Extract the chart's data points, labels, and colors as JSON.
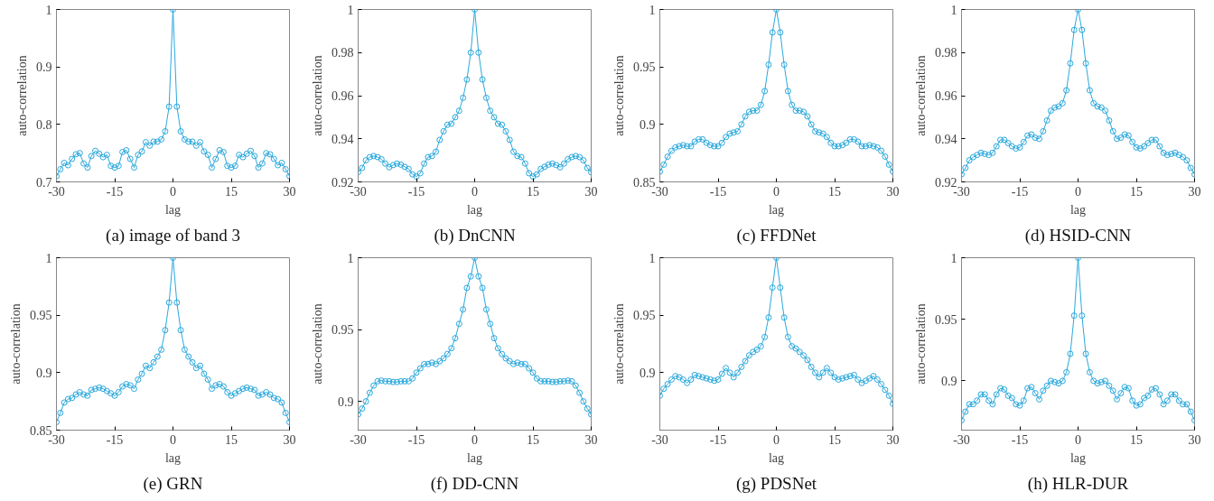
{
  "chart_data": [
    {
      "type": "line",
      "title": "(a) image of band 3",
      "xlabel": "lag",
      "ylabel": "auto-correlation",
      "marker": "circle",
      "grid": false,
      "color": "#2aa8dc",
      "xlim": [
        -30,
        30
      ],
      "ylim": [
        0.7,
        1
      ],
      "xticks": [
        -30,
        -15,
        0,
        15,
        30
      ],
      "yticks": [
        0.7,
        0.8,
        0.9,
        1
      ],
      "x": [
        -30,
        -29,
        -28,
        -27,
        -26,
        -25,
        -24,
        -23,
        -22,
        -21,
        -20,
        -19,
        -18,
        -17,
        -16,
        -15,
        -14,
        -13,
        -12,
        -11,
        -10,
        -9,
        -8,
        -7,
        -6,
        -5,
        -4,
        -3,
        -2,
        -1,
        0,
        1,
        2,
        3,
        4,
        5,
        6,
        7,
        8,
        9,
        10,
        11,
        12,
        13,
        14,
        15,
        16,
        17,
        18,
        19,
        20,
        21,
        22,
        23,
        24,
        25,
        26,
        27,
        28,
        29,
        30
      ],
      "values": [
        0.71,
        0.722,
        0.733,
        0.729,
        0.74,
        0.748,
        0.75,
        0.732,
        0.725,
        0.745,
        0.754,
        0.749,
        0.743,
        0.747,
        0.728,
        0.725,
        0.728,
        0.752,
        0.755,
        0.74,
        0.725,
        0.747,
        0.753,
        0.769,
        0.763,
        0.77,
        0.77,
        0.774,
        0.788,
        0.831,
        1,
        0.831,
        0.788,
        0.774,
        0.77,
        0.77,
        0.763,
        0.769,
        0.753,
        0.747,
        0.725,
        0.74,
        0.755,
        0.752,
        0.728,
        0.725,
        0.728,
        0.747,
        0.743,
        0.749,
        0.754,
        0.745,
        0.725,
        0.732,
        0.75,
        0.748,
        0.74,
        0.729,
        0.733,
        0.722,
        0.71
      ]
    },
    {
      "type": "line",
      "title": "(b) DnCNN",
      "xlabel": "lag",
      "ylabel": "auto-correlation",
      "marker": "circle",
      "grid": false,
      "color": "#2aa8dc",
      "xlim": [
        -30,
        30
      ],
      "ylim": [
        0.92,
        1
      ],
      "xticks": [
        -30,
        -15,
        0,
        15,
        30
      ],
      "yticks": [
        0.92,
        0.94,
        0.96,
        0.98,
        1
      ],
      "x": [
        -30,
        -29,
        -28,
        -27,
        -26,
        -25,
        -24,
        -23,
        -22,
        -21,
        -20,
        -19,
        -18,
        -17,
        -16,
        -15,
        -14,
        -13,
        -12,
        -11,
        -10,
        -9,
        -8,
        -7,
        -6,
        -5,
        -4,
        -3,
        -2,
        -1,
        0,
        1,
        2,
        3,
        4,
        5,
        6,
        7,
        8,
        9,
        10,
        11,
        12,
        13,
        14,
        15,
        16,
        17,
        18,
        19,
        20,
        21,
        22,
        23,
        24,
        25,
        26,
        27,
        28,
        29,
        30
      ],
      "values": [
        0.9245,
        0.9265,
        0.93,
        0.9315,
        0.932,
        0.9315,
        0.9305,
        0.9285,
        0.9268,
        0.9278,
        0.9285,
        0.928,
        0.927,
        0.926,
        0.9235,
        0.9225,
        0.924,
        0.9285,
        0.9315,
        0.932,
        0.934,
        0.9395,
        0.9435,
        0.9465,
        0.947,
        0.95,
        0.953,
        0.959,
        0.9675,
        0.98,
        1,
        0.98,
        0.9675,
        0.959,
        0.953,
        0.95,
        0.947,
        0.9465,
        0.9435,
        0.9395,
        0.934,
        0.932,
        0.9315,
        0.9285,
        0.924,
        0.9225,
        0.9235,
        0.926,
        0.927,
        0.928,
        0.9285,
        0.9278,
        0.9268,
        0.9285,
        0.9305,
        0.9315,
        0.932,
        0.9315,
        0.93,
        0.9265,
        0.9245
      ]
    },
    {
      "type": "line",
      "title": "(c) FFDNet",
      "xlabel": "lag",
      "ylabel": "auto-correlation",
      "marker": "circle",
      "grid": false,
      "color": "#2aa8dc",
      "xlim": [
        -30,
        30
      ],
      "ylim": [
        0.85,
        1
      ],
      "xticks": [
        -30,
        -15,
        0,
        15,
        30
      ],
      "yticks": [
        0.85,
        0.9,
        0.95,
        1
      ],
      "x": [
        -30,
        -29,
        -28,
        -27,
        -26,
        -25,
        -24,
        -23,
        -22,
        -21,
        -20,
        -19,
        -18,
        -17,
        -16,
        -15,
        -14,
        -13,
        -12,
        -11,
        -10,
        -9,
        -8,
        -7,
        -6,
        -5,
        -4,
        -3,
        -2,
        -1,
        0,
        1,
        2,
        3,
        4,
        5,
        6,
        7,
        8,
        9,
        10,
        11,
        12,
        13,
        14,
        15,
        16,
        17,
        18,
        19,
        20,
        21,
        22,
        23,
        24,
        25,
        26,
        27,
        28,
        29,
        30
      ],
      "values": [
        0.859,
        0.865,
        0.872,
        0.877,
        0.88,
        0.881,
        0.882,
        0.881,
        0.881,
        0.885,
        0.887,
        0.887,
        0.884,
        0.882,
        0.881,
        0.881,
        0.884,
        0.889,
        0.892,
        0.893,
        0.894,
        0.9,
        0.907,
        0.911,
        0.912,
        0.912,
        0.917,
        0.929,
        0.952,
        0.98,
        1,
        0.98,
        0.952,
        0.929,
        0.917,
        0.912,
        0.912,
        0.911,
        0.907,
        0.9,
        0.894,
        0.893,
        0.892,
        0.889,
        0.884,
        0.881,
        0.881,
        0.882,
        0.884,
        0.887,
        0.887,
        0.885,
        0.881,
        0.881,
        0.882,
        0.881,
        0.88,
        0.877,
        0.872,
        0.865,
        0.859
      ]
    },
    {
      "type": "line",
      "title": "(d) HSID-CNN",
      "xlabel": "lag",
      "ylabel": "auto-correlation",
      "marker": "circle",
      "grid": false,
      "color": "#2aa8dc",
      "xlim": [
        -30,
        30
      ],
      "ylim": [
        0.92,
        1
      ],
      "xticks": [
        -30,
        -15,
        0,
        15,
        30
      ],
      "yticks": [
        0.92,
        0.94,
        0.96,
        0.98,
        1
      ],
      "x": [
        -30,
        -29,
        -28,
        -27,
        -26,
        -25,
        -24,
        -23,
        -22,
        -21,
        -20,
        -19,
        -18,
        -17,
        -16,
        -15,
        -14,
        -13,
        -12,
        -11,
        -10,
        -9,
        -8,
        -7,
        -6,
        -5,
        -4,
        -3,
        -2,
        -1,
        0,
        1,
        2,
        3,
        4,
        5,
        6,
        7,
        8,
        9,
        10,
        11,
        12,
        13,
        14,
        15,
        16,
        17,
        18,
        19,
        20,
        21,
        22,
        23,
        24,
        25,
        26,
        27,
        28,
        29,
        30
      ],
      "values": [
        0.9235,
        0.9265,
        0.93,
        0.9315,
        0.9325,
        0.9335,
        0.933,
        0.9325,
        0.9335,
        0.9365,
        0.9395,
        0.9395,
        0.938,
        0.9365,
        0.9355,
        0.936,
        0.9385,
        0.9415,
        0.942,
        0.9405,
        0.94,
        0.9435,
        0.9485,
        0.953,
        0.9545,
        0.955,
        0.9565,
        0.9625,
        0.975,
        0.9905,
        1,
        0.9905,
        0.975,
        0.9625,
        0.9565,
        0.955,
        0.9545,
        0.953,
        0.9485,
        0.9435,
        0.94,
        0.9405,
        0.942,
        0.9415,
        0.9385,
        0.936,
        0.9355,
        0.9365,
        0.938,
        0.9395,
        0.9395,
        0.9365,
        0.9335,
        0.9325,
        0.933,
        0.9335,
        0.9325,
        0.9315,
        0.93,
        0.9265,
        0.9235
      ]
    },
    {
      "type": "line",
      "title": "(e) GRN",
      "xlabel": "lag",
      "ylabel": "auto-correlation",
      "marker": "circle",
      "grid": false,
      "color": "#2aa8dc",
      "xlim": [
        -30,
        30
      ],
      "ylim": [
        0.85,
        1
      ],
      "xticks": [
        -30,
        -15,
        0,
        15,
        30
      ],
      "yticks": [
        0.85,
        0.9,
        0.95,
        1
      ],
      "x": [
        -30,
        -29,
        -28,
        -27,
        -26,
        -25,
        -24,
        -23,
        -22,
        -21,
        -20,
        -19,
        -18,
        -17,
        -16,
        -15,
        -14,
        -13,
        -12,
        -11,
        -10,
        -9,
        -8,
        -7,
        -6,
        -5,
        -4,
        -3,
        -2,
        -1,
        0,
        1,
        2,
        3,
        4,
        5,
        6,
        7,
        8,
        9,
        10,
        11,
        12,
        13,
        14,
        15,
        16,
        17,
        18,
        19,
        20,
        21,
        22,
        23,
        24,
        25,
        26,
        27,
        28,
        29,
        30
      ],
      "values": [
        0.857,
        0.865,
        0.874,
        0.877,
        0.878,
        0.881,
        0.883,
        0.881,
        0.88,
        0.885,
        0.886,
        0.887,
        0.886,
        0.884,
        0.882,
        0.88,
        0.883,
        0.888,
        0.89,
        0.889,
        0.886,
        0.894,
        0.899,
        0.906,
        0.904,
        0.909,
        0.914,
        0.92,
        0.937,
        0.961,
        1,
        0.961,
        0.937,
        0.92,
        0.914,
        0.909,
        0.904,
        0.906,
        0.899,
        0.894,
        0.886,
        0.889,
        0.89,
        0.888,
        0.883,
        0.88,
        0.882,
        0.884,
        0.886,
        0.887,
        0.886,
        0.885,
        0.88,
        0.881,
        0.883,
        0.881,
        0.878,
        0.877,
        0.874,
        0.865,
        0.857
      ]
    },
    {
      "type": "line",
      "title": "(f) DD-CNN",
      "xlabel": "lag",
      "ylabel": "auto-correlation",
      "marker": "circle",
      "grid": false,
      "color": "#2aa8dc",
      "xlim": [
        -30,
        30
      ],
      "ylim": [
        0.88,
        1
      ],
      "xticks": [
        -30,
        -15,
        0,
        15,
        30
      ],
      "yticks": [
        0.9,
        0.95,
        1
      ],
      "x": [
        -30,
        -29,
        -28,
        -27,
        -26,
        -25,
        -24,
        -23,
        -22,
        -21,
        -20,
        -19,
        -18,
        -17,
        -16,
        -15,
        -14,
        -13,
        -12,
        -11,
        -10,
        -9,
        -8,
        -7,
        -6,
        -5,
        -4,
        -3,
        -2,
        -1,
        0,
        1,
        2,
        3,
        4,
        5,
        6,
        7,
        8,
        9,
        10,
        11,
        12,
        13,
        14,
        15,
        16,
        17,
        18,
        19,
        20,
        21,
        22,
        23,
        24,
        25,
        26,
        27,
        28,
        29,
        30
      ],
      "values": [
        0.891,
        0.895,
        0.9,
        0.906,
        0.911,
        0.914,
        0.9145,
        0.914,
        0.914,
        0.9135,
        0.9135,
        0.914,
        0.914,
        0.914,
        0.916,
        0.92,
        0.923,
        0.926,
        0.926,
        0.927,
        0.926,
        0.928,
        0.93,
        0.933,
        0.937,
        0.944,
        0.954,
        0.964,
        0.979,
        0.987,
        1,
        0.987,
        0.979,
        0.964,
        0.954,
        0.944,
        0.937,
        0.933,
        0.93,
        0.928,
        0.926,
        0.927,
        0.926,
        0.926,
        0.923,
        0.92,
        0.916,
        0.914,
        0.914,
        0.914,
        0.9135,
        0.9135,
        0.914,
        0.914,
        0.9145,
        0.914,
        0.911,
        0.906,
        0.9,
        0.895,
        0.891
      ]
    },
    {
      "type": "line",
      "title": "(g) PDSNet",
      "xlabel": "lag",
      "ylabel": "auto-correlation",
      "marker": "circle",
      "grid": false,
      "color": "#2aa8dc",
      "xlim": [
        -30,
        30
      ],
      "ylim": [
        0.85,
        1
      ],
      "xticks": [
        -30,
        -15,
        0,
        15,
        30
      ],
      "yticks": [
        0.9,
        0.95,
        1
      ],
      "x": [
        -30,
        -29,
        -28,
        -27,
        -26,
        -25,
        -24,
        -23,
        -22,
        -21,
        -20,
        -19,
        -18,
        -17,
        -16,
        -15,
        -14,
        -13,
        -12,
        -11,
        -10,
        -9,
        -8,
        -7,
        -6,
        -5,
        -4,
        -3,
        -2,
        -1,
        0,
        1,
        2,
        3,
        4,
        5,
        6,
        7,
        8,
        9,
        10,
        11,
        12,
        13,
        14,
        15,
        16,
        17,
        18,
        19,
        20,
        21,
        22,
        23,
        24,
        25,
        26,
        27,
        28,
        29,
        30
      ],
      "values": [
        0.88,
        0.886,
        0.89,
        0.894,
        0.897,
        0.896,
        0.894,
        0.891,
        0.894,
        0.898,
        0.897,
        0.896,
        0.895,
        0.894,
        0.893,
        0.894,
        0.899,
        0.904,
        0.9,
        0.896,
        0.9,
        0.905,
        0.91,
        0.915,
        0.918,
        0.92,
        0.923,
        0.931,
        0.948,
        0.974,
        1,
        0.974,
        0.948,
        0.931,
        0.923,
        0.921,
        0.918,
        0.915,
        0.911,
        0.905,
        0.9,
        0.896,
        0.9,
        0.904,
        0.9,
        0.896,
        0.894,
        0.895,
        0.896,
        0.897,
        0.898,
        0.894,
        0.891,
        0.893,
        0.895,
        0.897,
        0.894,
        0.89,
        0.885,
        0.88,
        0.873
      ]
    },
    {
      "type": "line",
      "title": "(h) HLR-DUR",
      "xlabel": "lag",
      "ylabel": "auto-correlation",
      "marker": "circle",
      "grid": false,
      "color": "#2aa8dc",
      "xlim": [
        -30,
        30
      ],
      "ylim": [
        0.86,
        1
      ],
      "xticks": [
        -30,
        -15,
        0,
        15,
        30
      ],
      "yticks": [
        0.9,
        0.95,
        1
      ],
      "x": [
        -30,
        -29,
        -28,
        -27,
        -26,
        -25,
        -24,
        -23,
        -22,
        -21,
        -20,
        -19,
        -18,
        -17,
        -16,
        -15,
        -14,
        -13,
        -12,
        -11,
        -10,
        -9,
        -8,
        -7,
        -6,
        -5,
        -4,
        -3,
        -2,
        -1,
        0,
        1,
        2,
        3,
        4,
        5,
        6,
        7,
        8,
        9,
        10,
        11,
        12,
        13,
        14,
        15,
        16,
        17,
        18,
        19,
        20,
        21,
        22,
        23,
        24,
        25,
        26,
        27,
        28,
        29,
        30
      ],
      "values": [
        0.868,
        0.875,
        0.881,
        0.881,
        0.884,
        0.889,
        0.889,
        0.884,
        0.881,
        0.889,
        0.894,
        0.893,
        0.888,
        0.886,
        0.881,
        0.88,
        0.884,
        0.894,
        0.895,
        0.89,
        0.885,
        0.892,
        0.896,
        0.9,
        0.899,
        0.898,
        0.9,
        0.907,
        0.922,
        0.953,
        1,
        0.953,
        0.922,
        0.907,
        0.9,
        0.898,
        0.899,
        0.9,
        0.896,
        0.892,
        0.885,
        0.89,
        0.895,
        0.894,
        0.884,
        0.88,
        0.881,
        0.886,
        0.888,
        0.893,
        0.894,
        0.889,
        0.881,
        0.884,
        0.889,
        0.889,
        0.884,
        0.881,
        0.881,
        0.875,
        0.868
      ]
    }
  ]
}
